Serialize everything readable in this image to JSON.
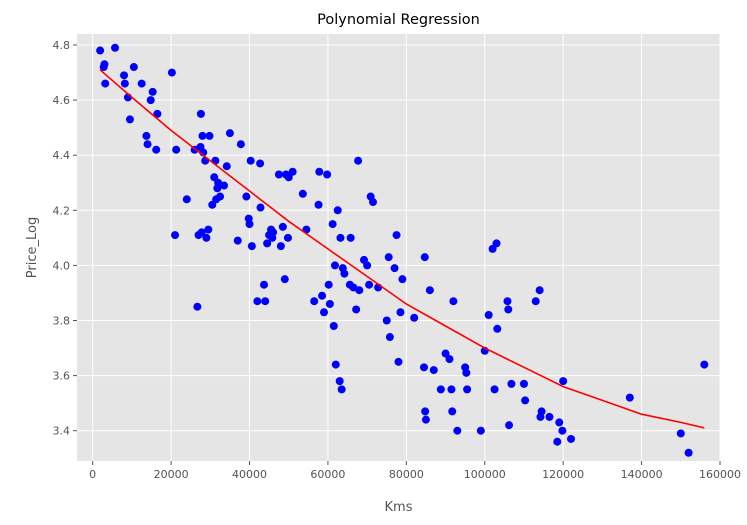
{
  "chart_data": {
    "type": "scatter",
    "title": "Polynomial Regression",
    "xlabel": "Kms",
    "ylabel": "Price_Log",
    "xlim": [
      -4000,
      160000
    ],
    "ylim": [
      3.29,
      4.84
    ],
    "xticks": [
      0,
      20000,
      40000,
      60000,
      80000,
      100000,
      120000,
      140000,
      160000
    ],
    "yticks": [
      3.4,
      3.6,
      3.8,
      4.0,
      4.2,
      4.4,
      4.6,
      4.8
    ],
    "grid": true,
    "style": "ggplot",
    "colors": {
      "background": "#e5e5e5",
      "grid": "#ffffff",
      "points": "#0000ff",
      "fit_line": "#ff0000"
    },
    "series": [
      {
        "kind": "scatter",
        "points": [
          [
            1900,
            4.78
          ],
          [
            2800,
            4.72
          ],
          [
            3000,
            4.73
          ],
          [
            3200,
            4.66
          ],
          [
            5700,
            4.79
          ],
          [
            8000,
            4.69
          ],
          [
            8200,
            4.66
          ],
          [
            9000,
            4.61
          ],
          [
            9500,
            4.53
          ],
          [
            10500,
            4.72
          ],
          [
            12500,
            4.66
          ],
          [
            13700,
            4.47
          ],
          [
            14000,
            4.44
          ],
          [
            14800,
            4.6
          ],
          [
            15300,
            4.63
          ],
          [
            16200,
            4.42
          ],
          [
            16500,
            4.55
          ],
          [
            20200,
            4.7
          ],
          [
            21000,
            4.11
          ],
          [
            21300,
            4.42
          ],
          [
            24000,
            4.24
          ],
          [
            26000,
            4.42
          ],
          [
            26700,
            3.85
          ],
          [
            27000,
            4.11
          ],
          [
            27500,
            4.43
          ],
          [
            27600,
            4.55
          ],
          [
            27800,
            4.12
          ],
          [
            28000,
            4.47
          ],
          [
            28200,
            4.41
          ],
          [
            28700,
            4.38
          ],
          [
            29000,
            4.1
          ],
          [
            29500,
            4.13
          ],
          [
            29800,
            4.47
          ],
          [
            30500,
            4.22
          ],
          [
            31000,
            4.32
          ],
          [
            31300,
            4.38
          ],
          [
            31500,
            4.24
          ],
          [
            31800,
            4.28
          ],
          [
            32000,
            4.3
          ],
          [
            32500,
            4.25
          ],
          [
            33500,
            4.29
          ],
          [
            34200,
            4.36
          ],
          [
            35000,
            4.48
          ],
          [
            37000,
            4.09
          ],
          [
            37800,
            4.44
          ],
          [
            39200,
            4.25
          ],
          [
            39800,
            4.17
          ],
          [
            40000,
            4.15
          ],
          [
            40300,
            4.38
          ],
          [
            40600,
            4.07
          ],
          [
            42000,
            3.87
          ],
          [
            42700,
            4.37
          ],
          [
            42800,
            4.21
          ],
          [
            43700,
            3.93
          ],
          [
            44000,
            3.87
          ],
          [
            44500,
            4.08
          ],
          [
            45000,
            4.11
          ],
          [
            45500,
            4.13
          ],
          [
            45800,
            4.1
          ],
          [
            46000,
            4.12
          ],
          [
            47500,
            4.33
          ],
          [
            48000,
            4.07
          ],
          [
            48500,
            4.14
          ],
          [
            49000,
            3.95
          ],
          [
            49300,
            4.33
          ],
          [
            49800,
            4.1
          ],
          [
            50000,
            4.32
          ],
          [
            51000,
            4.34
          ],
          [
            53600,
            4.26
          ],
          [
            54500,
            4.13
          ],
          [
            56500,
            3.87
          ],
          [
            57600,
            4.22
          ],
          [
            57800,
            4.34
          ],
          [
            58500,
            3.89
          ],
          [
            59000,
            3.83
          ],
          [
            59800,
            4.33
          ],
          [
            60200,
            3.93
          ],
          [
            60500,
            3.86
          ],
          [
            61200,
            4.15
          ],
          [
            61500,
            3.78
          ],
          [
            61800,
            4.0
          ],
          [
            62000,
            3.64
          ],
          [
            62500,
            4.2
          ],
          [
            63000,
            3.58
          ],
          [
            63200,
            4.1
          ],
          [
            63500,
            3.55
          ],
          [
            63800,
            3.99
          ],
          [
            64200,
            3.97
          ],
          [
            65600,
            3.93
          ],
          [
            65800,
            4.1
          ],
          [
            66500,
            3.92
          ],
          [
            67200,
            3.84
          ],
          [
            67700,
            4.38
          ],
          [
            68000,
            3.91
          ],
          [
            69200,
            4.02
          ],
          [
            70000,
            4.0
          ],
          [
            70500,
            3.93
          ],
          [
            70900,
            4.25
          ],
          [
            71500,
            4.23
          ],
          [
            72800,
            3.92
          ],
          [
            75000,
            3.8
          ],
          [
            75500,
            4.03
          ],
          [
            75800,
            3.74
          ],
          [
            77000,
            3.99
          ],
          [
            77500,
            4.11
          ],
          [
            78000,
            3.65
          ],
          [
            78500,
            3.83
          ],
          [
            79000,
            3.95
          ],
          [
            82000,
            3.81
          ],
          [
            84500,
            3.63
          ],
          [
            84700,
            4.03
          ],
          [
            84800,
            3.47
          ],
          [
            85000,
            3.44
          ],
          [
            86000,
            3.91
          ],
          [
            87000,
            3.62
          ],
          [
            88800,
            3.55
          ],
          [
            90000,
            3.68
          ],
          [
            91000,
            3.66
          ],
          [
            91500,
            3.55
          ],
          [
            91700,
            3.47
          ],
          [
            92000,
            3.87
          ],
          [
            93000,
            3.4
          ],
          [
            95000,
            3.63
          ],
          [
            95300,
            3.61
          ],
          [
            95500,
            3.55
          ],
          [
            99000,
            3.4
          ],
          [
            100000,
            3.69
          ],
          [
            101000,
            3.82
          ],
          [
            102000,
            4.06
          ],
          [
            102500,
            3.55
          ],
          [
            103000,
            4.08
          ],
          [
            103200,
            3.77
          ],
          [
            105800,
            3.87
          ],
          [
            106000,
            3.84
          ],
          [
            106200,
            3.42
          ],
          [
            106800,
            3.57
          ],
          [
            110000,
            3.57
          ],
          [
            110300,
            3.51
          ],
          [
            113000,
            3.87
          ],
          [
            114000,
            3.91
          ],
          [
            114200,
            3.45
          ],
          [
            114500,
            3.47
          ],
          [
            116500,
            3.45
          ],
          [
            118500,
            3.36
          ],
          [
            119000,
            3.43
          ],
          [
            119800,
            3.4
          ],
          [
            120000,
            3.58
          ],
          [
            122000,
            3.37
          ],
          [
            137000,
            3.52
          ],
          [
            150000,
            3.39
          ],
          [
            152000,
            3.32
          ],
          [
            156000,
            3.64
          ]
        ]
      },
      {
        "kind": "line",
        "points": [
          [
            1900,
            4.71
          ],
          [
            10000,
            4.61
          ],
          [
            20000,
            4.49
          ],
          [
            30000,
            4.38
          ],
          [
            40000,
            4.27
          ],
          [
            50000,
            4.16
          ],
          [
            60000,
            4.06
          ],
          [
            70000,
            3.96
          ],
          [
            80000,
            3.86
          ],
          [
            90000,
            3.78
          ],
          [
            100000,
            3.7
          ],
          [
            110000,
            3.63
          ],
          [
            120000,
            3.56
          ],
          [
            130000,
            3.51
          ],
          [
            140000,
            3.46
          ],
          [
            150000,
            3.43
          ],
          [
            156000,
            3.41
          ]
        ]
      }
    ]
  }
}
